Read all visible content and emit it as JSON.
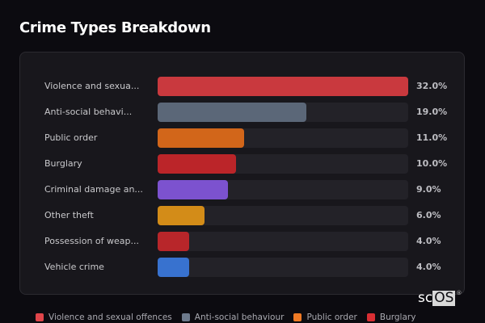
{
  "title": "Crime Types Breakdown",
  "rows": [
    {
      "label": "Violence and sexua...",
      "pct": "32.0%",
      "value": 32.0,
      "color": "#c9393e"
    },
    {
      "label": "Anti-social behavi...",
      "pct": "19.0%",
      "value": 19.0,
      "color": "#5b6778"
    },
    {
      "label": "Public order",
      "pct": "11.0%",
      "value": 11.0,
      "color": "#d2661a"
    },
    {
      "label": "Burglary",
      "pct": "10.0%",
      "value": 10.0,
      "color": "#bb2529"
    },
    {
      "label": "Criminal damage an...",
      "pct": "9.0%",
      "value": 9.0,
      "color": "#7c52cf"
    },
    {
      "label": "Other theft",
      "pct": "6.0%",
      "value": 6.0,
      "color": "#d38c18"
    },
    {
      "label": "Possession of weap...",
      "pct": "4.0%",
      "value": 4.0,
      "color": "#b8262a"
    },
    {
      "label": "Vehicle crime",
      "pct": "4.0%",
      "value": 4.0,
      "color": "#3872cf"
    }
  ],
  "legend": [
    {
      "label": "Violence and sexual offences",
      "color": "#e0454a"
    },
    {
      "label": "Anti-social behaviour",
      "color": "#6d7a8c"
    },
    {
      "label": "Public order",
      "color": "#ef7a25"
    },
    {
      "label": "Burglary",
      "color": "#d92e33"
    }
  ],
  "logo": {
    "sc": "sc",
    "os": "OS",
    "reg": "®"
  },
  "chart_data": {
    "type": "bar",
    "orientation": "horizontal",
    "title": "Crime Types Breakdown",
    "categories": [
      "Violence and sexual offences",
      "Anti-social behaviour",
      "Public order",
      "Burglary",
      "Criminal damage and arson",
      "Other theft",
      "Possession of weapons",
      "Vehicle crime"
    ],
    "values": [
      32.0,
      19.0,
      11.0,
      10.0,
      9.0,
      6.0,
      4.0,
      4.0
    ],
    "unit": "%",
    "xlabel": "",
    "ylabel": "",
    "xlim": [
      0,
      32
    ],
    "grid": false,
    "legend_position": "bottom"
  }
}
